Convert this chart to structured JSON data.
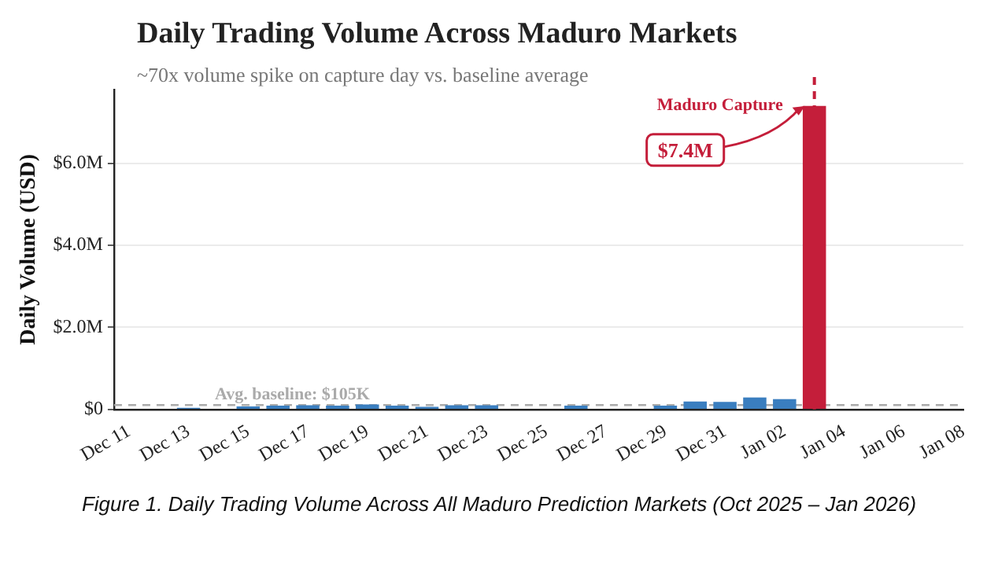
{
  "chart_data": {
    "type": "bar",
    "title": "Daily Trading Volume Across Maduro Markets",
    "subtitle": "~70x volume spike on capture day vs. baseline average",
    "ylabel": "Daily Volume (USD)",
    "x": [
      "2025-12-13",
      "2025-12-14",
      "2025-12-15",
      "2025-12-16",
      "2025-12-17",
      "2025-12-18",
      "2025-12-19",
      "2025-12-20",
      "2025-12-21",
      "2025-12-22",
      "2025-12-23",
      "2025-12-24",
      "2025-12-25",
      "2025-12-26",
      "2025-12-27",
      "2025-12-28",
      "2025-12-29",
      "2025-12-30",
      "2025-12-31",
      "2026-01-01",
      "2026-01-02",
      "2026-01-03"
    ],
    "values": [
      40000,
      null,
      70000,
      90000,
      100000,
      90000,
      120000,
      90000,
      60000,
      100000,
      100000,
      null,
      null,
      90000,
      null,
      null,
      90000,
      190000,
      180000,
      290000,
      250000,
      7400000
    ],
    "value_labels": [
      null,
      null,
      null,
      null,
      null,
      null,
      null,
      null,
      null,
      null,
      null,
      null,
      null,
      null,
      null,
      null,
      null,
      null,
      null,
      null,
      null,
      "$7.4M"
    ],
    "colors": [
      "#3a7ebf",
      "#3a7ebf",
      "#3a7ebf",
      "#3a7ebf",
      "#3a7ebf",
      "#3a7ebf",
      "#3a7ebf",
      "#3a7ebf",
      "#3a7ebf",
      "#3a7ebf",
      "#3a7ebf",
      "#3a7ebf",
      "#3a7ebf",
      "#3a7ebf",
      "#3a7ebf",
      "#3a7ebf",
      "#3a7ebf",
      "#3a7ebf",
      "#3a7ebf",
      "#3a7ebf",
      "#3a7ebf",
      "#c41e3a"
    ],
    "xlim": [
      "2025-12-10T12:00",
      "2026-01-08"
    ],
    "xticks": [
      {
        "value": "2025-12-11",
        "label": "Dec 11"
      },
      {
        "value": "2025-12-13",
        "label": "Dec 13"
      },
      {
        "value": "2025-12-15",
        "label": "Dec 15"
      },
      {
        "value": "2025-12-17",
        "label": "Dec 17"
      },
      {
        "value": "2025-12-19",
        "label": "Dec 19"
      },
      {
        "value": "2025-12-21",
        "label": "Dec 21"
      },
      {
        "value": "2025-12-23",
        "label": "Dec 23"
      },
      {
        "value": "2025-12-25",
        "label": "Dec 25"
      },
      {
        "value": "2025-12-27",
        "label": "Dec 27"
      },
      {
        "value": "2025-12-29",
        "label": "Dec 29"
      },
      {
        "value": "2025-12-31",
        "label": "Dec 31"
      },
      {
        "value": "2026-01-02",
        "label": "Jan 02"
      },
      {
        "value": "2026-01-04",
        "label": "Jan 04"
      },
      {
        "value": "2026-01-06",
        "label": "Jan 06"
      },
      {
        "value": "2026-01-08",
        "label": "Jan 08"
      }
    ],
    "ylim": [
      0,
      7800000
    ],
    "yticks": [
      {
        "value": 0,
        "label": "$0"
      },
      {
        "value": 2000000,
        "label": "$2.0M"
      },
      {
        "value": 4000000,
        "label": "$4.0M"
      },
      {
        "value": 6000000,
        "label": "$6.0M"
      }
    ],
    "grid": "y",
    "ref_lines": [
      {
        "axis": "y",
        "value": 105000,
        "label": "Avg. baseline: $105K",
        "color": "#aaaaaa",
        "line_style": "dashed"
      },
      {
        "axis": "x",
        "value": "2026-01-03",
        "label": "Maduro Capture",
        "color": "#c41e3a",
        "line_style": "dashed"
      }
    ],
    "annotations": [
      "Figure 1. Daily Trading Volume Across All Maduro Prediction Markets (Oct 2025 – Jan 2026)"
    ]
  }
}
